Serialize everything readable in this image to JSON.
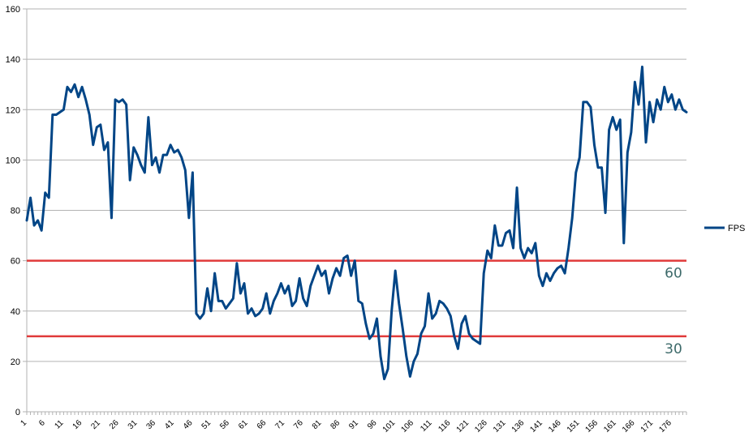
{
  "chart_data": {
    "type": "line",
    "title": "",
    "xlabel": "",
    "ylabel": "",
    "ylim": [
      0,
      160
    ],
    "yticks": [
      0,
      20,
      40,
      60,
      80,
      100,
      120,
      140,
      160
    ],
    "xlim": [
      1,
      180
    ],
    "xticks": [
      1,
      6,
      11,
      16,
      21,
      26,
      31,
      36,
      41,
      46,
      51,
      56,
      61,
      66,
      71,
      76,
      81,
      86,
      91,
      96,
      101,
      106,
      111,
      116,
      121,
      126,
      131,
      136,
      141,
      146,
      151,
      156,
      161,
      166,
      171,
      176
    ],
    "grid": true,
    "legend": "right",
    "series": [
      {
        "name": "FPS",
        "color": "#004586",
        "values": [
          76,
          85,
          74,
          76,
          72,
          87,
          85,
          118,
          118,
          119,
          120,
          129,
          127,
          130,
          125,
          129,
          124,
          118,
          106,
          113,
          114,
          104,
          107,
          77,
          124,
          123,
          124,
          122,
          92,
          105,
          102,
          98,
          95,
          117,
          98,
          101,
          95,
          102,
          102,
          106,
          103,
          104,
          101,
          96,
          77,
          95,
          39,
          37,
          39,
          49,
          40,
          55,
          44,
          44,
          41,
          43,
          45,
          59,
          47,
          51,
          39,
          41,
          38,
          39,
          41,
          47,
          39,
          44,
          47,
          51,
          47,
          50,
          42,
          44,
          53,
          45,
          42,
          50,
          54,
          58,
          54,
          56,
          47,
          53,
          57,
          54,
          61,
          62,
          54,
          60,
          44,
          43,
          35,
          29,
          31,
          37,
          22,
          13,
          17,
          40,
          56,
          43,
          33,
          22,
          14,
          20,
          23,
          31,
          34,
          47,
          37,
          39,
          44,
          43,
          41,
          38,
          30,
          25,
          35,
          38,
          31,
          29,
          28,
          27,
          55,
          64,
          61,
          74,
          66,
          66,
          71,
          72,
          65,
          89,
          65,
          61,
          65,
          63,
          67,
          54,
          50,
          55,
          52,
          55,
          57,
          58,
          55,
          65,
          77,
          95,
          101,
          123,
          123,
          121,
          106,
          97,
          97,
          79,
          112,
          117,
          112,
          116,
          67,
          103,
          111,
          131,
          122,
          137,
          107,
          123,
          115,
          124,
          120,
          129,
          123,
          126,
          120,
          124,
          120,
          119
        ]
      }
    ],
    "reference_lines": [
      {
        "value": 60,
        "label": "60",
        "color": "#e03a3a"
      },
      {
        "value": 30,
        "label": "30",
        "color": "#e03a3a"
      }
    ]
  }
}
